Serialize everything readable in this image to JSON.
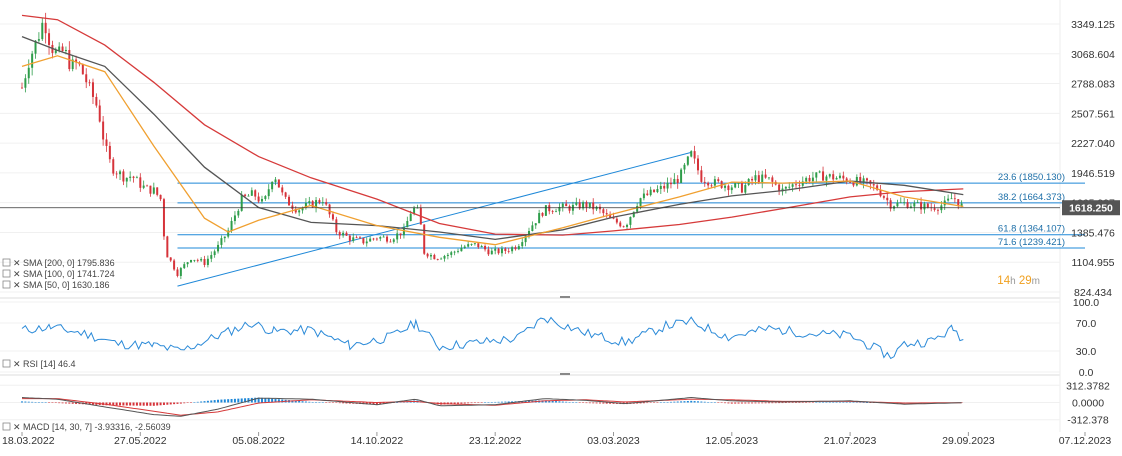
{
  "colors": {
    "up": "#2e9d4a",
    "down": "#d6333a",
    "sma200": "#d63a3a",
    "sma100": "#555555",
    "sma50": "#f0a030",
    "fib": "#1e88d8",
    "trend": "#1e88d8",
    "rsi": "#2b8ad8",
    "macd_line": "#555555",
    "macd_signal": "#d63a3a",
    "hist_pos": "#1e88d8",
    "hist_neg": "#d6333a",
    "price_box": "#555555",
    "countdown": "#f0a020"
  },
  "countdown": {
    "hours": "14",
    "h": "h",
    "minutes": "29",
    "m": "m"
  },
  "current_price": "1618.250",
  "chart_data": [
    {
      "type": "candlestick",
      "panel": "price",
      "y_ticks": [
        "3349.125",
        "3068.604",
        "2788.083",
        "2507.561",
        "2227.040",
        "1946.519",
        "1665.997",
        "1385.476",
        "1104.955",
        "824.434"
      ],
      "y_range": [
        824.434,
        3489.386
      ],
      "x_range": [
        "2022-03-18",
        "2023-12-07"
      ],
      "x_ticks": [
        "18.03.2022",
        "27.05.2022",
        "05.08.2022",
        "14.10.2022",
        "23.12.2022",
        "03.03.2023",
        "12.05.2023",
        "21.07.2023",
        "29.09.2023",
        "07.12.2023"
      ],
      "price_path": [
        [
          "2022-03-18",
          2750
        ],
        [
          "2022-03-22",
          3000
        ],
        [
          "2022-03-28",
          3250
        ],
        [
          "2022-03-31",
          3400
        ],
        [
          "2022-04-04",
          3150
        ],
        [
          "2022-04-08",
          3050
        ],
        [
          "2022-04-12",
          3100
        ],
        [
          "2022-04-16",
          2950
        ],
        [
          "2022-04-20",
          2980
        ],
        [
          "2022-04-24",
          2850
        ],
        [
          "2022-04-28",
          2700
        ],
        [
          "2022-05-02",
          2550
        ],
        [
          "2022-05-06",
          2200
        ],
        [
          "2022-05-10",
          2000
        ],
        [
          "2022-05-14",
          1950
        ],
        [
          "2022-05-18",
          1900
        ],
        [
          "2022-05-22",
          1920
        ],
        [
          "2022-05-26",
          1850
        ],
        [
          "2022-05-30",
          1800
        ],
        [
          "2022-06-04",
          1780
        ],
        [
          "2022-06-08",
          1700
        ],
        [
          "2022-06-11",
          1200
        ],
        [
          "2022-06-18",
          1000
        ],
        [
          "2022-06-26",
          1150
        ],
        [
          "2022-07-04",
          1100
        ],
        [
          "2022-07-12",
          1250
        ],
        [
          "2022-07-18",
          1400
        ],
        [
          "2022-07-26",
          1700
        ],
        [
          "2022-08-02",
          1750
        ],
        [
          "2022-08-08",
          1650
        ],
        [
          "2022-08-14",
          1950
        ],
        [
          "2022-08-20",
          1700
        ],
        [
          "2022-08-28",
          1600
        ],
        [
          "2022-09-05",
          1650
        ],
        [
          "2022-09-12",
          1700
        ],
        [
          "2022-09-20",
          1400
        ],
        [
          "2022-09-28",
          1330
        ],
        [
          "2022-10-06",
          1300
        ],
        [
          "2022-10-14",
          1340
        ],
        [
          "2022-10-22",
          1330
        ],
        [
          "2022-10-30",
          1400
        ],
        [
          "2022-11-04",
          1620
        ],
        [
          "2022-11-08",
          1570
        ],
        [
          "2022-11-11",
          1200
        ],
        [
          "2022-11-18",
          1150
        ],
        [
          "2022-11-26",
          1180
        ],
        [
          "2022-12-04",
          1250
        ],
        [
          "2022-12-12",
          1270
        ],
        [
          "2022-12-20",
          1200
        ],
        [
          "2022-12-28",
          1210
        ],
        [
          "2023-01-05",
          1260
        ],
        [
          "2023-01-13",
          1440
        ],
        [
          "2023-01-21",
          1600
        ],
        [
          "2023-01-29",
          1620
        ],
        [
          "2023-02-06",
          1620
        ],
        [
          "2023-02-14",
          1650
        ],
        [
          "2023-02-22",
          1600
        ],
        [
          "2023-03-02",
          1500
        ],
        [
          "2023-03-10",
          1450
        ],
        [
          "2023-03-18",
          1700
        ],
        [
          "2023-03-26",
          1760
        ],
        [
          "2023-04-03",
          1820
        ],
        [
          "2023-04-11",
          1900
        ],
        [
          "2023-04-18",
          2120
        ],
        [
          "2023-04-24",
          1900
        ],
        [
          "2023-05-02",
          1850
        ],
        [
          "2023-05-10",
          1830
        ],
        [
          "2023-05-18",
          1800
        ],
        [
          "2023-05-26",
          1900
        ],
        [
          "2023-06-03",
          1880
        ],
        [
          "2023-06-11",
          1780
        ],
        [
          "2023-06-19",
          1850
        ],
        [
          "2023-06-27",
          1900
        ],
        [
          "2023-07-05",
          1920
        ],
        [
          "2023-07-13",
          1900
        ],
        [
          "2023-07-21",
          1880
        ],
        [
          "2023-07-29",
          1850
        ],
        [
          "2023-08-06",
          1800
        ],
        [
          "2023-08-14",
          1650
        ],
        [
          "2023-08-22",
          1660
        ],
        [
          "2023-08-30",
          1640
        ],
        [
          "2023-09-07",
          1620
        ],
        [
          "2023-09-15",
          1650
        ],
        [
          "2023-09-20",
          1720
        ],
        [
          "2023-09-26",
          1618
        ]
      ],
      "trend_line": [
        [
          "2022-06-18",
          880
        ],
        [
          "2023-04-18",
          2140
        ]
      ],
      "fib_levels": [
        {
          "label": "23.6 (1850.130)",
          "value": 1850.13
        },
        {
          "label": "38.2 (1664.373)",
          "value": 1664.373
        },
        {
          "label": "61.8 (1364.107)",
          "value": 1364.107
        },
        {
          "label": "71.6 (1239.421)",
          "value": 1239.421
        }
      ],
      "fib_start": "2022-06-18",
      "fib_end": "2023-12-07",
      "sma_legend": [
        {
          "label": "SMA [200, 0] 1795.836"
        },
        {
          "label": "SMA [100, 0] 1741.724"
        },
        {
          "label": "SMA [50, 0] 1630.186"
        }
      ],
      "sma200": [
        [
          "2022-03-18",
          3430
        ],
        [
          "2022-04-08",
          3390
        ],
        [
          "2022-05-06",
          3150
        ],
        [
          "2022-06-04",
          2800
        ],
        [
          "2022-07-04",
          2400
        ],
        [
          "2022-08-05",
          2100
        ],
        [
          "2022-09-05",
          1900
        ],
        [
          "2022-10-14",
          1700
        ],
        [
          "2022-11-20",
          1470
        ],
        [
          "2022-12-23",
          1370
        ],
        [
          "2023-02-01",
          1360
        ],
        [
          "2023-03-03",
          1400
        ],
        [
          "2023-04-11",
          1460
        ],
        [
          "2023-05-12",
          1530
        ],
        [
          "2023-06-11",
          1610
        ],
        [
          "2023-07-21",
          1720
        ],
        [
          "2023-08-22",
          1770
        ],
        [
          "2023-09-26",
          1796
        ]
      ],
      "sma100": [
        [
          "2022-03-18",
          3230
        ],
        [
          "2022-04-08",
          3100
        ],
        [
          "2022-05-06",
          2950
        ],
        [
          "2022-06-04",
          2500
        ],
        [
          "2022-07-04",
          2000
        ],
        [
          "2022-08-05",
          1620
        ],
        [
          "2022-09-05",
          1480
        ],
        [
          "2022-10-14",
          1450
        ],
        [
          "2022-11-20",
          1390
        ],
        [
          "2022-12-23",
          1320
        ],
        [
          "2023-02-01",
          1410
        ],
        [
          "2023-03-03",
          1530
        ],
        [
          "2023-04-11",
          1650
        ],
        [
          "2023-05-12",
          1730
        ],
        [
          "2023-06-11",
          1780
        ],
        [
          "2023-07-21",
          1870
        ],
        [
          "2023-08-22",
          1830
        ],
        [
          "2023-09-26",
          1742
        ]
      ],
      "sma50": [
        [
          "2022-03-18",
          2950
        ],
        [
          "2022-04-08",
          3050
        ],
        [
          "2022-05-06",
          2900
        ],
        [
          "2022-06-04",
          2200
        ],
        [
          "2022-07-04",
          1520
        ],
        [
          "2022-07-18",
          1390
        ],
        [
          "2022-08-05",
          1500
        ],
        [
          "2022-09-05",
          1640
        ],
        [
          "2022-10-14",
          1450
        ],
        [
          "2022-11-20",
          1340
        ],
        [
          "2022-12-23",
          1270
        ],
        [
          "2023-02-01",
          1430
        ],
        [
          "2023-03-03",
          1560
        ],
        [
          "2023-04-11",
          1720
        ],
        [
          "2023-05-12",
          1860
        ],
        [
          "2023-06-11",
          1850
        ],
        [
          "2023-07-21",
          1870
        ],
        [
          "2023-08-22",
          1720
        ],
        [
          "2023-09-26",
          1630
        ]
      ]
    },
    {
      "type": "line",
      "panel": "rsi",
      "legend": "RSI [14] 46.4",
      "y_ticks": [
        "100.0",
        "70.0",
        "30.0",
        "0.0"
      ],
      "y_range": [
        0,
        100
      ],
      "x": [
        "2022-03-18",
        "2022-04-04",
        "2022-04-24",
        "2022-05-14",
        "2022-06-04",
        "2022-06-20",
        "2022-07-12",
        "2022-08-01",
        "2022-08-14",
        "2022-09-05",
        "2022-09-28",
        "2022-10-22",
        "2022-11-06",
        "2022-11-20",
        "2022-12-12",
        "2023-01-05",
        "2023-01-21",
        "2023-02-14",
        "2023-03-10",
        "2023-04-03",
        "2023-04-18",
        "2023-05-10",
        "2023-06-03",
        "2023-06-27",
        "2023-07-21",
        "2023-08-14",
        "2023-08-22",
        "2023-09-07",
        "2023-09-20",
        "2023-09-26"
      ],
      "values": [
        60,
        64,
        55,
        40,
        38,
        30,
        52,
        70,
        58,
        60,
        38,
        50,
        70,
        36,
        42,
        48,
        78,
        56,
        42,
        66,
        72,
        50,
        62,
        55,
        52,
        22,
        40,
        44,
        62,
        46.4
      ]
    },
    {
      "type": "line",
      "panel": "macd",
      "legend": "MACD [14, 30, 7] -3.93316, -2.56039",
      "y_ticks": [
        "312.3782",
        "0.0000",
        "-312.378"
      ],
      "y_range": [
        -390,
        390
      ],
      "x": [
        "2022-03-18",
        "2022-04-08",
        "2022-05-06",
        "2022-06-04",
        "2022-06-20",
        "2022-07-12",
        "2022-08-05",
        "2022-09-05",
        "2022-10-14",
        "2022-11-06",
        "2022-11-20",
        "2022-12-23",
        "2023-01-21",
        "2023-02-14",
        "2023-03-10",
        "2023-04-18",
        "2023-05-12",
        "2023-06-11",
        "2023-07-21",
        "2023-08-22",
        "2023-09-26"
      ],
      "macd": [
        90,
        60,
        -80,
        -220,
        -250,
        -120,
        80,
        60,
        -40,
        60,
        -60,
        -40,
        70,
        40,
        -20,
        90,
        30,
        10,
        30,
        -30,
        -3.93
      ],
      "signal": [
        70,
        70,
        -30,
        -160,
        -230,
        -170,
        -10,
        50,
        0,
        20,
        -20,
        -50,
        30,
        50,
        10,
        60,
        50,
        20,
        20,
        -10,
        -2.56
      ]
    }
  ]
}
